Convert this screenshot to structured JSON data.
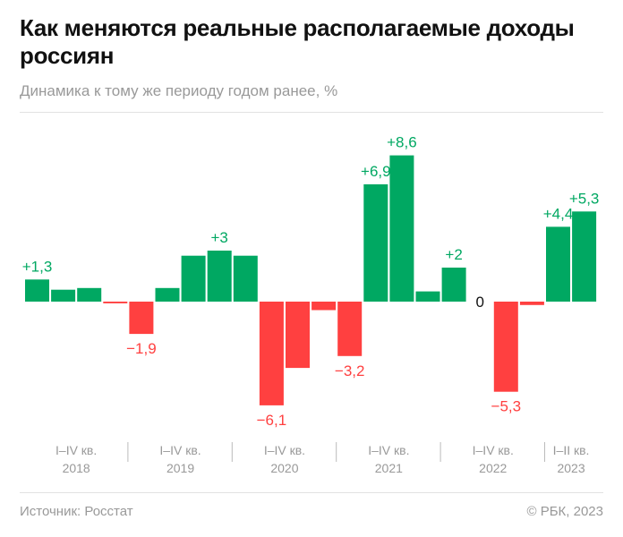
{
  "title": "Как меняются реальные располагаемые доходы россиян",
  "subtitle": "Динамика к тому же периоду годом ранее, %",
  "source": "Источник: Росстат",
  "copyright": "© РБК, 2023",
  "colors": {
    "positive": "#00a862",
    "negative": "#ff4040",
    "zero_label": "#111111"
  },
  "chart_data": {
    "type": "bar",
    "title": "Как меняются реальные располагаемые доходы россиян",
    "subtitle": "Динамика к тому же периоду годом ранее, %",
    "groups": [
      {
        "line1": "I–IV кв.",
        "line2": "2018",
        "count": 4
      },
      {
        "line1": "I–IV кв.",
        "line2": "2019",
        "count": 4
      },
      {
        "line1": "I–IV кв.",
        "line2": "2020",
        "count": 4
      },
      {
        "line1": "I–IV кв.",
        "line2": "2021",
        "count": 4
      },
      {
        "line1": "I–IV кв.",
        "line2": "2022",
        "count": 4
      },
      {
        "line1": "I–II кв.",
        "line2": "2023",
        "count": 2
      }
    ],
    "values": [
      1.3,
      0.7,
      0.8,
      -0.1,
      -1.9,
      0.8,
      2.7,
      3.0,
      2.7,
      -6.1,
      -3.9,
      -0.5,
      -3.2,
      6.9,
      8.6,
      0.6,
      2.0,
      0,
      -5.3,
      -0.2,
      4.4,
      5.3
    ],
    "data_labels": [
      {
        "index": 0,
        "text": "+1,3"
      },
      {
        "index": 4,
        "text": "−1,9"
      },
      {
        "index": 7,
        "text": "+3"
      },
      {
        "index": 9,
        "text": "−6,1"
      },
      {
        "index": 12,
        "text": "−3,2"
      },
      {
        "index": 13,
        "text": "+6,9"
      },
      {
        "index": 14,
        "text": "+8,6"
      },
      {
        "index": 16,
        "text": "+2"
      },
      {
        "index": 17,
        "text": "0"
      },
      {
        "index": 18,
        "text": "−5,3"
      },
      {
        "index": 20,
        "text": "+4,4"
      },
      {
        "index": 21,
        "text": "+5,3"
      }
    ],
    "ylim": [
      -7,
      9
    ],
    "grid": false,
    "legend": "none"
  }
}
